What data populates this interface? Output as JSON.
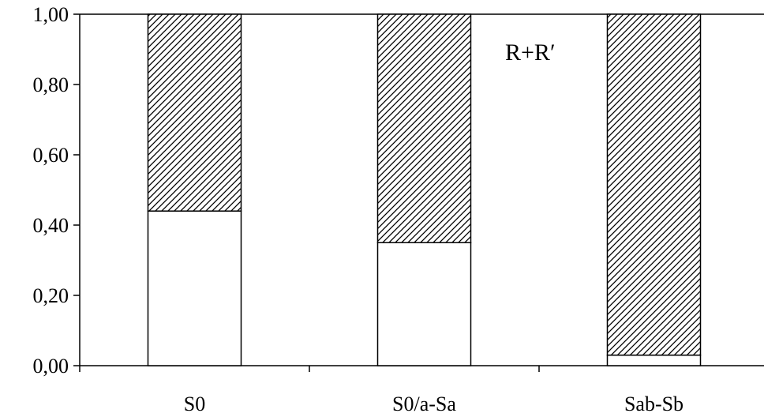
{
  "chart_data": {
    "type": "bar",
    "stacked": true,
    "categories": [
      "S0",
      "S0/a-Sa",
      "Sab-Sb"
    ],
    "series": [
      {
        "fill": "white",
        "values": [
          0.44,
          0.35,
          0.03
        ]
      },
      {
        "fill": "hatched",
        "values": [
          0.56,
          0.65,
          0.97
        ]
      }
    ],
    "y_ticks": [
      "0,00",
      "0,20",
      "0,40",
      "0,60",
      "0,80",
      "1,00"
    ],
    "ylim": [
      0,
      1
    ],
    "annotation": "R+R′",
    "grid": false,
    "legend": "none",
    "colors": {
      "axis": "#000000",
      "bar_stroke": "#000000",
      "bar_fill": "#ffffff",
      "hatch": "#000000"
    }
  }
}
